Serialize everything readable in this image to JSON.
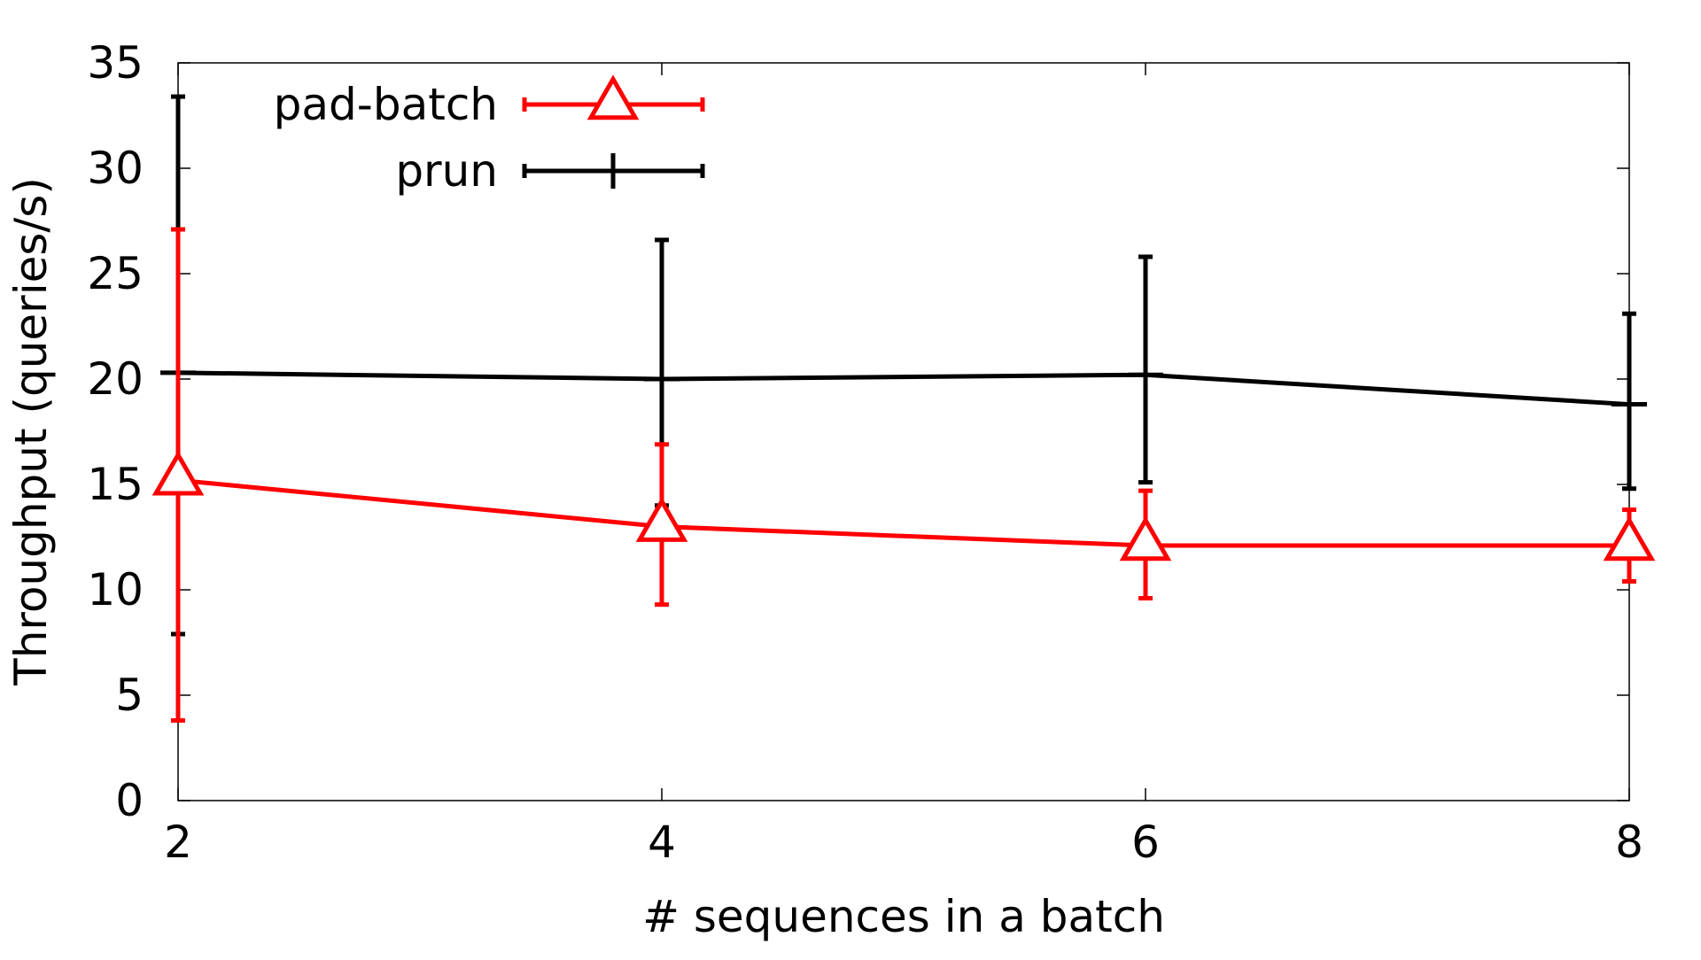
{
  "chart_data": {
    "type": "line",
    "title": "",
    "xlabel": "# sequences in a batch",
    "ylabel": "Throughput (queries/s)",
    "xlim": [
      2,
      8
    ],
    "ylim": [
      0,
      35
    ],
    "x_ticks": [
      2,
      4,
      6,
      8
    ],
    "y_ticks": [
      0,
      5,
      10,
      15,
      20,
      25,
      30,
      35
    ],
    "grid": false,
    "legend_position": "top-left",
    "x": [
      2,
      4,
      6,
      8
    ],
    "series": [
      {
        "name": "pad-batch",
        "color": "#ff0000",
        "marker": "triangle",
        "values": [
          15.2,
          13.0,
          12.1,
          12.1
        ],
        "error_low": [
          3.8,
          9.3,
          9.6,
          10.4
        ],
        "error_high": [
          27.1,
          16.9,
          14.7,
          13.8
        ]
      },
      {
        "name": "prun",
        "color": "#000000",
        "marker": "plus",
        "values": [
          20.3,
          20.0,
          20.2,
          18.8
        ],
        "error_low": [
          7.9,
          14.0,
          15.1,
          14.8
        ],
        "error_high": [
          33.4,
          26.6,
          25.8,
          23.1
        ]
      }
    ]
  }
}
